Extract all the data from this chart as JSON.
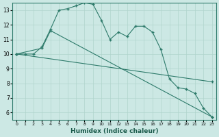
{
  "xlabel": "Humidex (Indice chaleur)",
  "background_color": "#cce8e4",
  "grid_color": "#b0d4cc",
  "line_color": "#2d7a6a",
  "xlim": [
    -0.5,
    23.5
  ],
  "ylim": [
    5.5,
    13.5
  ],
  "xticks": [
    0,
    1,
    2,
    3,
    4,
    5,
    6,
    7,
    8,
    9,
    10,
    11,
    12,
    13,
    14,
    15,
    16,
    17,
    18,
    19,
    20,
    21,
    22,
    23
  ],
  "yticks": [
    6,
    7,
    8,
    9,
    10,
    11,
    12,
    13
  ],
  "line1_x": [
    0,
    1,
    2,
    3,
    4,
    5,
    6,
    7,
    8,
    9,
    10,
    11,
    12,
    13,
    14,
    15,
    16,
    17,
    18,
    19,
    20,
    21,
    22,
    23
  ],
  "line1_y": [
    10.0,
    10.0,
    10.0,
    10.5,
    11.7,
    13.0,
    13.1,
    13.3,
    13.5,
    13.4,
    12.3,
    11.0,
    11.5,
    11.2,
    11.9,
    11.9,
    11.5,
    10.3,
    8.3,
    7.7,
    7.6,
    7.3,
    6.3,
    5.7
  ],
  "line2_x": [
    0,
    3,
    4,
    23
  ],
  "line2_y": [
    10.0,
    10.4,
    11.6,
    5.7
  ],
  "line3_x": [
    0,
    23
  ],
  "line3_y": [
    10.0,
    8.1
  ]
}
